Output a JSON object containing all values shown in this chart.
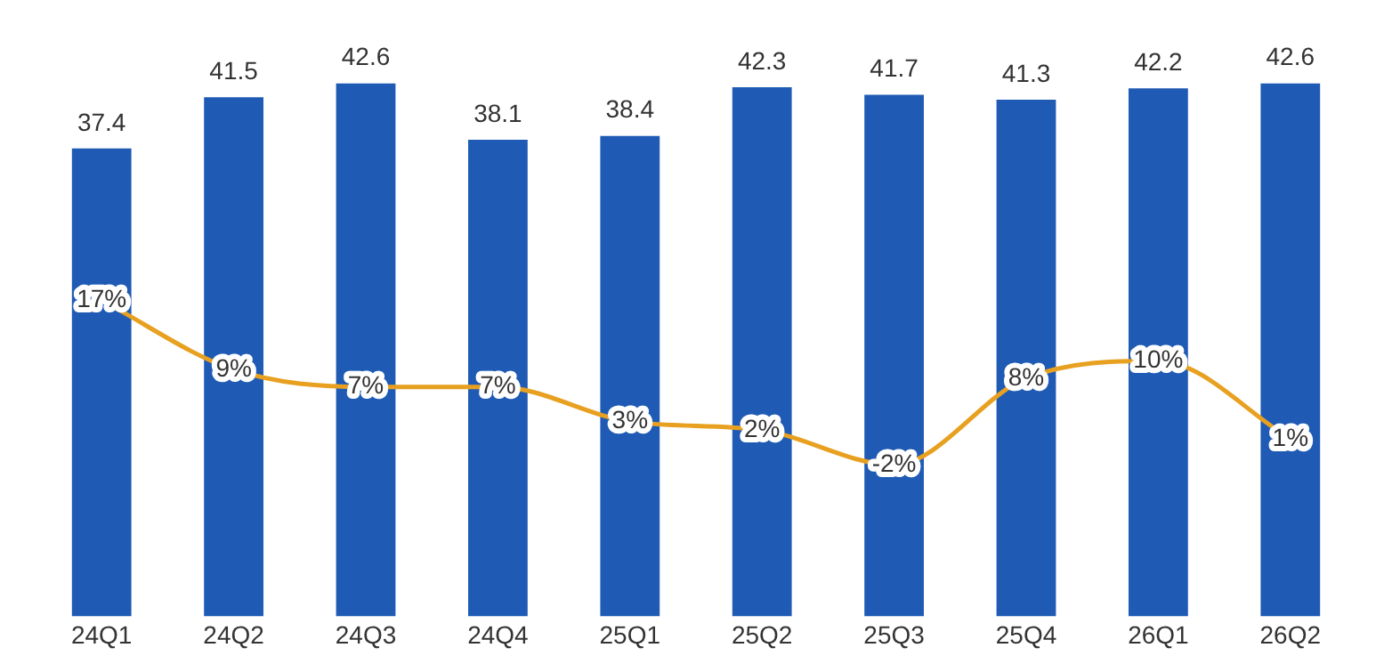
{
  "chart_data": {
    "type": "bar",
    "categories": [
      "24Q1",
      "24Q2",
      "24Q3",
      "24Q4",
      "25Q1",
      "25Q2",
      "25Q3",
      "25Q4",
      "26Q1",
      "26Q2"
    ],
    "grid": false,
    "legend": false,
    "tick_labels": "x",
    "series": [
      {
        "color": "#1f5bb4",
        "values": [
          37.4,
          41.5,
          42.6,
          38.1,
          38.4,
          42.3,
          41.7,
          41.3,
          42.2,
          42.6
        ],
        "value_labels": [
          "37.4",
          "41.5",
          "42.6",
          "38.1",
          "38.4",
          "42.3",
          "41.7",
          "41.3",
          "42.2",
          "42.6"
        ]
      },
      {
        "type": "line",
        "axis": "y2",
        "color": "#e8a020",
        "marker": "none",
        "values": [
          17,
          9,
          7,
          7,
          3,
          2,
          -2,
          8,
          10,
          1
        ],
        "value_labels": [
          "17%",
          "9%",
          "7%",
          "7%",
          "3%",
          "2%",
          "-2%",
          "8%",
          "10%",
          "1%"
        ]
      }
    ]
  }
}
